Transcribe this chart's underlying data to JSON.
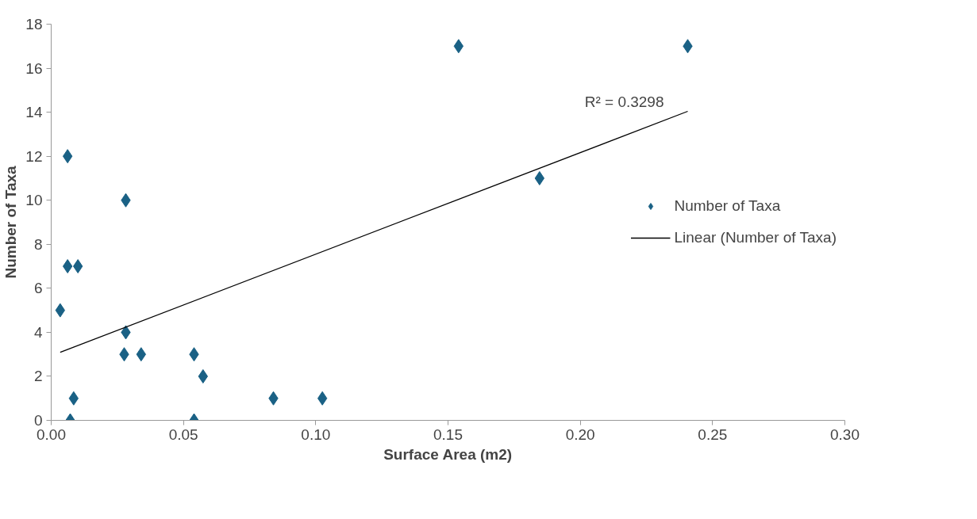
{
  "chart_data": {
    "type": "scatter",
    "xlabel": "Surface Area (m2)",
    "ylabel": "Number of Taxa",
    "series": [
      {
        "name": "Number of Taxa",
        "color": "#1a6185",
        "marker": "diamond",
        "x": [
          0.0034,
          0.0062,
          0.0062,
          0.0101,
          0.0085,
          0.0072,
          0.0282,
          0.0282,
          0.0276,
          0.034,
          0.054,
          0.054,
          0.0574,
          0.084,
          0.1025,
          0.154,
          0.1846,
          0.2406
        ],
        "values": [
          5,
          12,
          7,
          7,
          1,
          0,
          10,
          4,
          3,
          3,
          3,
          0,
          2,
          1,
          1,
          17,
          11,
          17
        ]
      },
      {
        "name": "Linear (Number of Taxa)",
        "type": "line",
        "color": "#000000",
        "line_style": "solid",
        "x": [
          0.0034,
          0.2406
        ],
        "values": [
          3.09,
          14.04
        ]
      }
    ],
    "annotations": [
      "R² = 0.3298"
    ],
    "xlim": [
      0,
      0.3
    ],
    "xticks": [
      {
        "value": 0,
        "label": "0.00"
      },
      {
        "value": 0.05,
        "label": "0.05"
      },
      {
        "value": 0.1,
        "label": "0.10"
      },
      {
        "value": 0.15,
        "label": "0.15"
      },
      {
        "value": 0.2,
        "label": "0.20"
      },
      {
        "value": 0.25,
        "label": "0.25"
      },
      {
        "value": 0.3,
        "label": "0.30"
      }
    ],
    "ylim": [
      0,
      18
    ],
    "yticks": [
      0,
      2,
      4,
      6,
      8,
      10,
      12,
      14,
      16,
      18
    ],
    "grid": false,
    "legend": "right"
  }
}
